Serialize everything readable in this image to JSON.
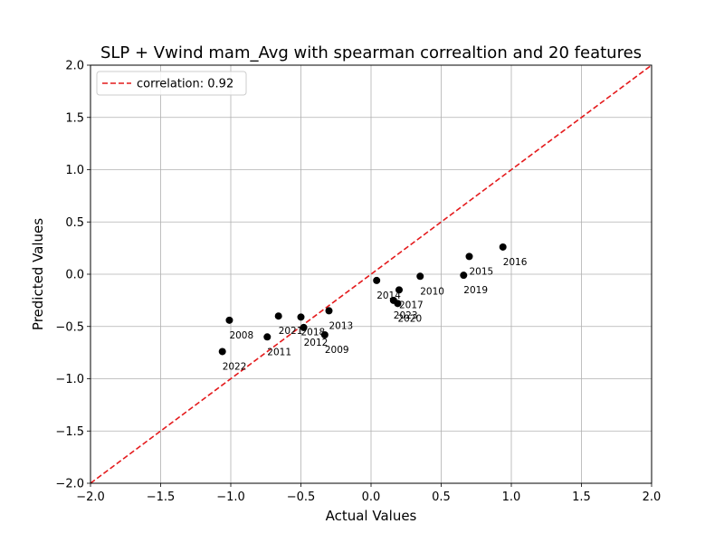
{
  "chart_data": {
    "type": "scatter",
    "title": "SLP + Vwind mam_Avg with spearman correaltion and 20 features",
    "xlabel": "Actual Values",
    "ylabel": "Predicted Values",
    "xlim": [
      -2.0,
      2.0
    ],
    "ylim": [
      -2.0,
      2.0
    ],
    "xticks": [
      "−2.0",
      "−1.5",
      "−1.0",
      "−0.5",
      "0.0",
      "0.5",
      "1.0",
      "1.5",
      "2.0"
    ],
    "yticks": [
      "−2.0",
      "−1.5",
      "−1.0",
      "−0.5",
      "0.0",
      "0.5",
      "1.0",
      "1.5",
      "2.0"
    ],
    "xtick_values": [
      -2.0,
      -1.5,
      -1.0,
      -0.5,
      0.0,
      0.5,
      1.0,
      1.5,
      2.0
    ],
    "ytick_values": [
      -2.0,
      -1.5,
      -1.0,
      -0.5,
      0.0,
      0.5,
      1.0,
      1.5,
      2.0
    ],
    "grid": true,
    "legend_position": "upper-left",
    "legend_label": "correlation: 0.92",
    "line_color": "#e41a1c",
    "point_color": "#000000",
    "reference_line": {
      "x": [
        -2.0,
        2.0
      ],
      "y": [
        -2.0,
        2.0
      ]
    },
    "points": [
      {
        "year": "2008",
        "x": -1.01,
        "y": -0.44
      },
      {
        "year": "2022",
        "x": -1.06,
        "y": -0.74
      },
      {
        "year": "2011",
        "x": -0.74,
        "y": -0.6
      },
      {
        "year": "2021",
        "x": -0.66,
        "y": -0.4
      },
      {
        "year": "2018",
        "x": -0.5,
        "y": -0.41
      },
      {
        "year": "2012",
        "x": -0.48,
        "y": -0.51
      },
      {
        "year": "2013",
        "x": -0.3,
        "y": -0.35
      },
      {
        "year": "2009",
        "x": -0.33,
        "y": -0.58
      },
      {
        "year": "2014",
        "x": 0.04,
        "y": -0.06
      },
      {
        "year": "2017",
        "x": 0.2,
        "y": -0.15
      },
      {
        "year": "2023",
        "x": 0.16,
        "y": -0.25
      },
      {
        "year": "2020",
        "x": 0.19,
        "y": -0.28
      },
      {
        "year": "2010",
        "x": 0.35,
        "y": -0.02
      },
      {
        "year": "2019",
        "x": 0.66,
        "y": -0.01
      },
      {
        "year": "2015",
        "x": 0.7,
        "y": 0.17
      },
      {
        "year": "2016",
        "x": 0.94,
        "y": 0.26
      }
    ]
  }
}
